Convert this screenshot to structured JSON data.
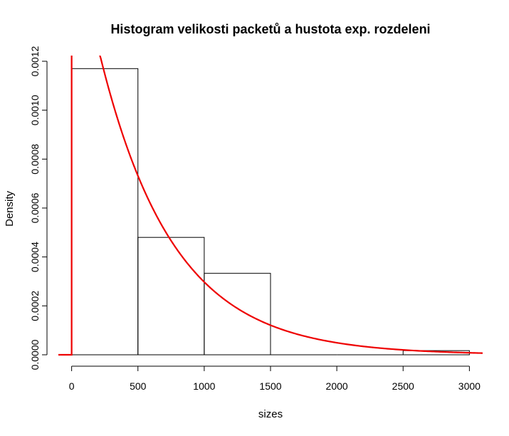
{
  "chart_data": {
    "type": "bar",
    "title": "Histogram velikosti packetů a hustota exp. rozdeleni",
    "xlabel": "sizes",
    "ylabel": "Density",
    "xlim": [
      -100,
      3100
    ],
    "ylim": [
      0,
      0.0012
    ],
    "x_ticks": [
      0,
      500,
      1000,
      1500,
      2000,
      2500,
      3000
    ],
    "x_tick_labels": [
      "0",
      "500",
      "1000",
      "1500",
      "2000",
      "2500",
      "3000"
    ],
    "y_ticks": [
      0,
      0.0002,
      0.0004,
      0.0006,
      0.0008,
      0.001,
      0.0012
    ],
    "y_tick_labels": [
      "0.0000",
      "0.0002",
      "0.0004",
      "0.0006",
      "0.0008",
      "0.0010",
      "0.0012"
    ],
    "bins": [
      {
        "from": 0,
        "to": 500,
        "density": 0.00117
      },
      {
        "from": 500,
        "to": 1000,
        "density": 0.00048
      },
      {
        "from": 1000,
        "to": 1500,
        "density": 0.000333
      },
      {
        "from": 1500,
        "to": 2000,
        "density": 0
      },
      {
        "from": 2000,
        "to": 2500,
        "density": 0
      },
      {
        "from": 2500,
        "to": 3000,
        "density": 1.7e-05
      }
    ],
    "density_curve": {
      "distribution": "exponential",
      "rate": 0.0018,
      "color": "#ee0000"
    },
    "grid": false,
    "legend": "none"
  }
}
